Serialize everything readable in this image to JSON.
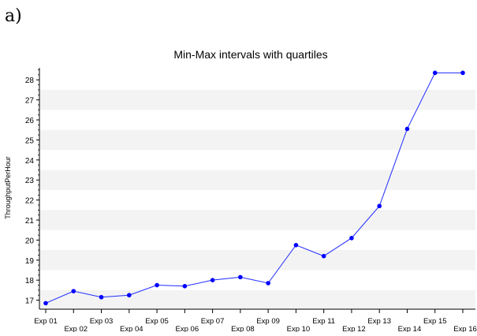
{
  "panel_label": "a)",
  "chart_data": {
    "type": "line",
    "title": "Min-Max intervals with quartiles",
    "xlabel": "",
    "ylabel": "ThroughputPerHour",
    "categories": [
      "Exp 01",
      "Exp 02",
      "Exp 03",
      "Exp 04",
      "Exp 05",
      "Exp 06",
      "Exp 07",
      "Exp 08",
      "Exp 09",
      "Exp 10",
      "Exp 11",
      "Exp 12",
      "Exp 13",
      "Exp 14",
      "Exp 15",
      "Exp 16"
    ],
    "values": [
      16.85,
      17.45,
      17.15,
      17.25,
      17.75,
      17.7,
      18.0,
      18.15,
      17.85,
      19.75,
      19.2,
      20.1,
      21.7,
      25.55,
      28.35,
      28.35
    ],
    "yticks": [
      17,
      18,
      19,
      20,
      21,
      22,
      23,
      24,
      25,
      26,
      27,
      28
    ],
    "ylim": [
      16.55,
      28.6
    ],
    "grid": "alternating horizontal bands",
    "legend": "none",
    "colors": {
      "line": "#1f2bff",
      "marker": "#0000ff",
      "band": "#f3f3f3",
      "axis": "#000000"
    }
  }
}
